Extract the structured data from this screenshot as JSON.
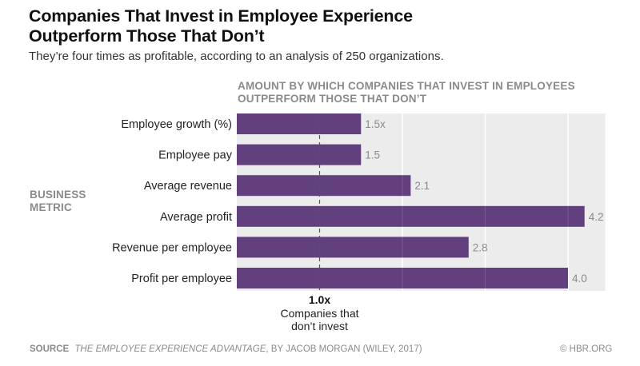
{
  "header": {
    "title_line1": "Companies That Invest in Employee Experience",
    "title_line2": "Outperform Those That Don’t",
    "subtitle": "They’re four times as profitable, according to an analysis of 250 organizations."
  },
  "footer": {
    "source_label": "SOURCE",
    "source_title": "THE EMPLOYEE EXPERIENCE ADVANTAGE",
    "source_rest": ", BY JACOB MORGAN (WILEY, 2017)",
    "credit": "© HBR.ORG"
  },
  "colors": {
    "bar": "#62407e",
    "panel": "#ececec",
    "gridline": "#ffffff",
    "reference_line": "#555555",
    "value_text": "#8a8a8a"
  },
  "chart_data": {
    "type": "bar",
    "orientation": "horizontal",
    "title": "Companies That Invest in Employee Experience Outperform Those That Don’t",
    "subtitle": "They’re four times as profitable, according to an analysis of 250 organizations.",
    "xlabel_line1": "AMOUNT BY WHICH COMPANIES THAT INVEST IN EMPLOYEES",
    "xlabel_line2": "OUTPERFORM THOSE THAT DON’T",
    "ylabel_line1": "BUSINESS",
    "ylabel_line2": "METRIC",
    "categories": [
      "Employee growth (%)",
      "Employee pay",
      "Average revenue",
      "Average profit",
      "Revenue per employee",
      "Profit per employee"
    ],
    "values": [
      1.5,
      1.5,
      2.1,
      4.2,
      2.8,
      4.0
    ],
    "value_labels": [
      "1.5x",
      "1.5",
      "2.1",
      "4.2",
      "2.8",
      "4.0"
    ],
    "xlim": [
      0,
      4.45
    ],
    "gridlines_x": [
      2,
      3,
      4
    ],
    "reference_line": {
      "value": 1.0,
      "label": "1.0x",
      "caption_line1": "Companies that",
      "caption_line2": "don’t invest",
      "style": "dashed"
    },
    "grid": true,
    "legend": "none"
  }
}
